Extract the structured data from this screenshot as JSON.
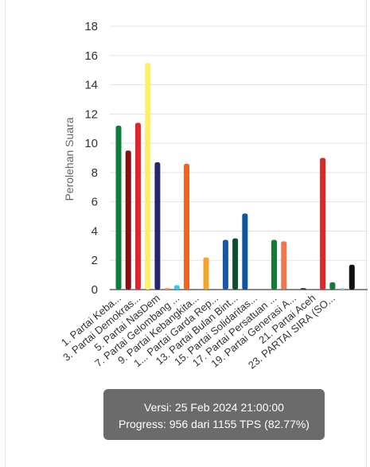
{
  "tooltip": {
    "version": "Versi: 25 Feb 2024 21:00:00",
    "progress": "Progress: 956 dari 1155 TPS (82.77%)"
  },
  "chart_data": {
    "type": "bar",
    "ylabel": "Perolehan Suara",
    "xlabel": "",
    "ylim": [
      0,
      18
    ],
    "yticks": [
      0,
      2,
      4,
      6,
      8,
      10,
      12,
      14,
      16,
      18
    ],
    "grid": true,
    "bars": [
      {
        "value": 11.2,
        "color": "#0e7d3c"
      },
      {
        "value": 9.5,
        "color": "#8b0f12"
      },
      {
        "value": 11.4,
        "color": "#e0242c"
      },
      {
        "value": 15.5,
        "color": "#fff06a"
      },
      {
        "value": 8.7,
        "color": "#26266b"
      },
      {
        "value": 0.1,
        "color": "#f39c47"
      },
      {
        "value": 0.3,
        "color": "#36c6e8"
      },
      {
        "value": 8.6,
        "color": "#f26322"
      },
      {
        "value": 0,
        "color": "#cccccc"
      },
      {
        "value": 2.2,
        "color": "#f0a52b"
      },
      {
        "value": 0,
        "color": "#cccccc"
      },
      {
        "value": 3.4,
        "color": "#1957a6"
      },
      {
        "value": 3.5,
        "color": "#0f4d31"
      },
      {
        "value": 5.2,
        "color": "#0d57a0"
      },
      {
        "value": 0,
        "color": "#cccccc"
      },
      {
        "value": 0,
        "color": "#cccccc"
      },
      {
        "value": 3.4,
        "color": "#127b34"
      },
      {
        "value": 3.3,
        "color": "#f0774a"
      },
      {
        "value": 0,
        "color": "#cccccc"
      },
      {
        "value": 0.1,
        "color": "#333333"
      },
      {
        "value": 0,
        "color": "#cccccc"
      },
      {
        "value": 9.0,
        "color": "#d62a2a"
      },
      {
        "value": 0.5,
        "color": "#117a36"
      },
      {
        "value": 0.1,
        "color": "#8ccfe8"
      },
      {
        "value": 1.7,
        "color": "#111111"
      }
    ],
    "tick_labels": [
      {
        "label": "1. Partai Keba...",
        "bar": 0
      },
      {
        "label": "3. Partai Demokras...",
        "bar": 2
      },
      {
        "label": "5. Partai NasDem",
        "bar": 4
      },
      {
        "label": "7. Partai Gelombang ...",
        "bar": 6
      },
      {
        "label": "9. Partai Kebangkita...",
        "bar": 8
      },
      {
        "label": "1... Partai Garda Rep...",
        "bar": 10
      },
      {
        "label": "13. Partai Bulan Bint...",
        "bar": 12
      },
      {
        "label": "15. Partai Solidaritas...",
        "bar": 14
      },
      {
        "label": "17. Partai Persatuan ...",
        "bar": 16
      },
      {
        "label": "19. Partai Generasi A...",
        "bar": 18
      },
      {
        "label": "21. Partai Aceh",
        "bar": 20
      },
      {
        "label": "23. PARTAI SIRA (SO...",
        "bar": 22
      }
    ]
  }
}
